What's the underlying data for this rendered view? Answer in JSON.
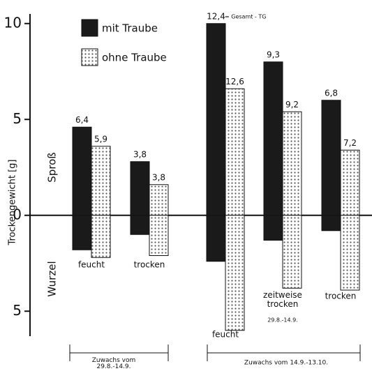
{
  "chart_data": {
    "type": "bar",
    "y_label": "Trockengewicht [g]",
    "upper_label": "Sproß",
    "lower_label": "Wurzel",
    "ylim": [
      -6.3,
      10.5
    ],
    "yticks": [
      {
        "value": -5,
        "label": "5"
      },
      0,
      5,
      10
    ],
    "categories": [
      "feucht",
      "trocken",
      "feucht",
      "zeitweise trocken",
      "trocken"
    ],
    "category_note": "29.8.-14.9.",
    "groups": [
      "Zuwachs vom 29.8.-14.9.",
      "Zuwachs vom 14.9.-13.10."
    ],
    "total_note": "= Gesamt - TG",
    "series": [
      {
        "name": "mit Traube",
        "color": "#1a1a1a",
        "pattern": "solid",
        "values": [
          4.6,
          2.8,
          10.0,
          8.0,
          6.0
        ],
        "root_values": [
          -1.8,
          -1.0,
          -2.4,
          -1.3,
          -0.8
        ],
        "totals": [
          6.4,
          3.8,
          12.4,
          9.3,
          6.8
        ],
        "total_labels": [
          "6,4",
          "3,8",
          "12,4",
          "9,3",
          "6,8"
        ]
      },
      {
        "name": "ohne Traube",
        "color": "#ffffff",
        "pattern": "dots",
        "values": [
          3.6,
          1.6,
          6.6,
          5.4,
          3.4
        ],
        "root_values": [
          -2.2,
          -2.1,
          -6.0,
          -3.8,
          -3.9
        ],
        "totals": [
          5.9,
          3.8,
          12.6,
          9.2,
          7.2
        ],
        "total_labels": [
          "5,9",
          "3,8",
          "12,6",
          "9,2",
          "7,2"
        ]
      }
    ]
  }
}
